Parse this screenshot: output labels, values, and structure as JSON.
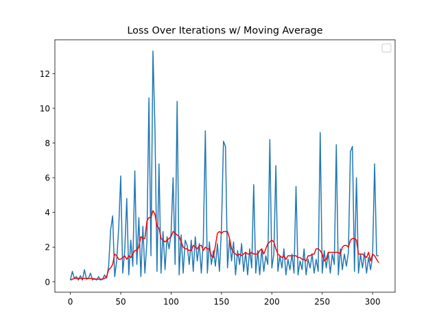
{
  "chart_data": {
    "type": "line",
    "title": "Loss Over Iterations w/ Moving Average",
    "x": [
      0,
      2,
      4,
      6,
      8,
      10,
      12,
      14,
      16,
      18,
      20,
      22,
      24,
      26,
      28,
      30,
      32,
      34,
      36,
      38,
      40,
      42,
      44,
      46,
      48,
      50,
      52,
      54,
      56,
      58,
      60,
      62,
      64,
      66,
      68,
      70,
      72,
      74,
      76,
      78,
      80,
      82,
      84,
      86,
      88,
      90,
      92,
      94,
      96,
      98,
      100,
      102,
      104,
      106,
      108,
      110,
      112,
      114,
      116,
      118,
      120,
      122,
      124,
      126,
      128,
      130,
      132,
      134,
      136,
      138,
      140,
      142,
      144,
      146,
      148,
      150,
      152,
      154,
      156,
      158,
      160,
      162,
      164,
      166,
      168,
      170,
      172,
      174,
      176,
      178,
      180,
      182,
      184,
      186,
      188,
      190,
      192,
      194,
      196,
      198,
      200,
      202,
      204,
      206,
      208,
      210,
      212,
      214,
      216,
      218,
      220,
      222,
      224,
      226,
      228,
      230,
      232,
      234,
      236,
      238,
      240,
      242,
      244,
      246,
      248,
      250,
      252,
      254,
      256,
      258,
      260,
      262,
      264,
      266,
      268,
      270,
      272,
      274,
      276,
      278,
      280,
      282,
      284,
      286,
      288,
      290,
      292,
      294,
      296,
      298,
      300,
      302,
      304,
      306
    ],
    "series": [
      {
        "color": "#1f77b4",
        "values": [
          0.1,
          0.6,
          0.2,
          0.3,
          0.1,
          0.35,
          0.1,
          0.7,
          0.15,
          0.2,
          0.5,
          0.1,
          0.2,
          0.1,
          0.3,
          0.1,
          0.15,
          0.4,
          0.2,
          0.9,
          3.0,
          3.8,
          0.3,
          1.2,
          3.1,
          6.1,
          0.5,
          1.8,
          4.8,
          0.4,
          2.4,
          0.9,
          6.4,
          1.0,
          3.7,
          0.3,
          3.2,
          0.5,
          2.3,
          10.6,
          1.5,
          13.3,
          8.8,
          0.6,
          6.8,
          0.5,
          2.9,
          0.7,
          2.6,
          1.9,
          2.8,
          6.0,
          1.0,
          10.4,
          0.4,
          2.7,
          0.5,
          2.4,
          2.1,
          1.0,
          2.4,
          0.6,
          2.6,
          1.2,
          2.2,
          0.5,
          2.4,
          8.7,
          0.5,
          2.3,
          1.0,
          1.8,
          0.9,
          2.2,
          0.6,
          3.1,
          8.1,
          7.8,
          0.8,
          2.5,
          1.2,
          2.3,
          0.4,
          1.8,
          1.0,
          2.2,
          0.6,
          1.7,
          0.4,
          1.9,
          0.8,
          5.6,
          0.5,
          1.8,
          0.4,
          1.9,
          0.6,
          1.5,
          1.0,
          8.2,
          0.8,
          1.6,
          6.7,
          0.6,
          1.5,
          0.8,
          1.9,
          0.4,
          1.3,
          0.7,
          1.6,
          0.5,
          5.5,
          0.4,
          1.2,
          0.7,
          1.9,
          0.4,
          1.3,
          0.8,
          1.6,
          0.5,
          1.3,
          0.6,
          8.6,
          0.5,
          1.8,
          0.8,
          1.7,
          0.5,
          1.6,
          1.0,
          7.9,
          0.4,
          1.9,
          0.7,
          1.6,
          0.9,
          1.7,
          7.5,
          7.8,
          0.6,
          6.0,
          0.5,
          1.6,
          0.8,
          1.7,
          0.5,
          1.4,
          0.7,
          1.5,
          6.8,
          1.5,
          1.5
        ]
      },
      {
        "color": "red",
        "values": [
          0.1,
          0.15,
          0.2,
          0.2,
          0.2,
          0.2,
          0.2,
          0.2,
          0.2,
          0.2,
          0.2,
          0.2,
          0.15,
          0.15,
          0.15,
          0.15,
          0.15,
          0.2,
          0.3,
          0.7,
          0.8,
          1.0,
          1.6,
          1.5,
          1.3,
          1.3,
          1.4,
          1.5,
          1.3,
          1.5,
          1.4,
          1.6,
          1.8,
          1.8,
          2.0,
          2.6,
          2.5,
          2.5,
          3.5,
          3.7,
          3.7,
          4.1,
          3.9,
          3.2,
          3.1,
          2.5,
          2.4,
          2.3,
          2.4,
          2.5,
          2.6,
          2.9,
          2.8,
          2.7,
          2.6,
          2.3,
          2.0,
          1.9,
          1.9,
          1.8,
          1.8,
          2.1,
          2.0,
          1.9,
          2.1,
          2.1,
          1.8,
          2.0,
          1.9,
          1.9,
          1.5,
          1.4,
          2.1,
          2.8,
          2.9,
          2.8,
          2.9,
          2.9,
          2.9,
          2.5,
          1.9,
          1.7,
          1.6,
          1.5,
          1.6,
          1.5,
          1.6,
          1.7,
          1.6,
          1.6,
          1.7,
          1.6,
          1.6,
          1.6,
          1.8,
          1.9,
          1.6,
          1.9,
          2.2,
          2.3,
          2.4,
          2.3,
          1.9,
          1.6,
          1.5,
          1.4,
          1.5,
          1.3,
          1.5,
          1.5,
          1.5,
          1.5,
          1.5,
          1.4,
          1.4,
          1.3,
          1.3,
          1.2,
          1.5,
          1.5,
          1.6,
          1.6,
          1.9,
          1.9,
          1.8,
          1.6,
          1.2,
          1.3,
          1.7,
          1.7,
          1.7,
          1.7,
          1.7,
          1.7,
          1.6,
          2.0,
          2.1,
          2.1,
          2.0,
          2.4,
          2.5,
          2.5,
          2.4,
          1.6,
          1.6,
          1.6,
          1.5,
          1.4,
          1.7,
          1.2,
          1.6,
          1.5,
          1.3,
          1.1
        ]
      }
    ],
    "xlim": [
      -15.35,
      322.35
    ],
    "xticks": [
      0,
      50,
      100,
      150,
      200,
      250,
      300
    ],
    "ylim": [
      -0.6,
      13.95
    ],
    "yticks": [
      0,
      2,
      4,
      6,
      8,
      10,
      12
    ]
  }
}
